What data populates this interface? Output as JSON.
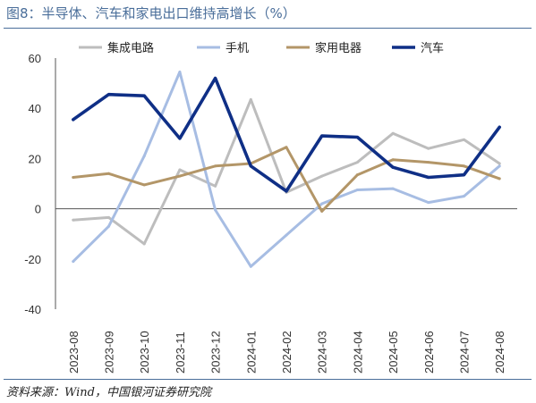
{
  "figure_title": "图8：半导体、汽车和家电出口维持高增长（%）",
  "source_note": "资料来源：Wind，中国银河证券研究院",
  "chart_data": {
    "type": "line",
    "title": "图8：半导体、汽车和家电出口维持高增长（%）",
    "xlabel": "",
    "ylabel": "",
    "categories": [
      "2023-08",
      "2023-09",
      "2023-10",
      "2023-11",
      "2023-12",
      "2024-01",
      "2024-02",
      "2024-03",
      "2024-04",
      "2024-05",
      "2024-06",
      "2024-07",
      "2024-08"
    ],
    "ylim": [
      -40,
      60
    ],
    "yticks": [
      -40,
      -20,
      0,
      20,
      40,
      60
    ],
    "grid": false,
    "legend_position": "top",
    "series": [
      {
        "name": "集成电路",
        "color": "#bdbdbd",
        "values": [
          -4.5,
          -3.5,
          -14,
          15.5,
          9,
          43.5,
          6.5,
          13,
          18.5,
          30,
          24,
          27.5,
          18
        ]
      },
      {
        "name": "手机",
        "color": "#a7bde3",
        "values": [
          -21,
          -7,
          21,
          54.5,
          -0.5,
          -23,
          -10.5,
          2,
          7.5,
          8,
          2.5,
          5,
          17
        ]
      },
      {
        "name": "家用电器",
        "color": "#b39668",
        "values": [
          12.5,
          14,
          9.5,
          13,
          17,
          18,
          24.5,
          -1,
          13.5,
          19.5,
          18.5,
          17,
          12
        ]
      },
      {
        "name": "汽车",
        "color": "#0f2f86",
        "values": [
          35.5,
          45.5,
          45,
          28,
          52,
          17,
          7,
          29,
          28.5,
          16.5,
          12.5,
          13.5,
          32.5
        ]
      }
    ]
  }
}
